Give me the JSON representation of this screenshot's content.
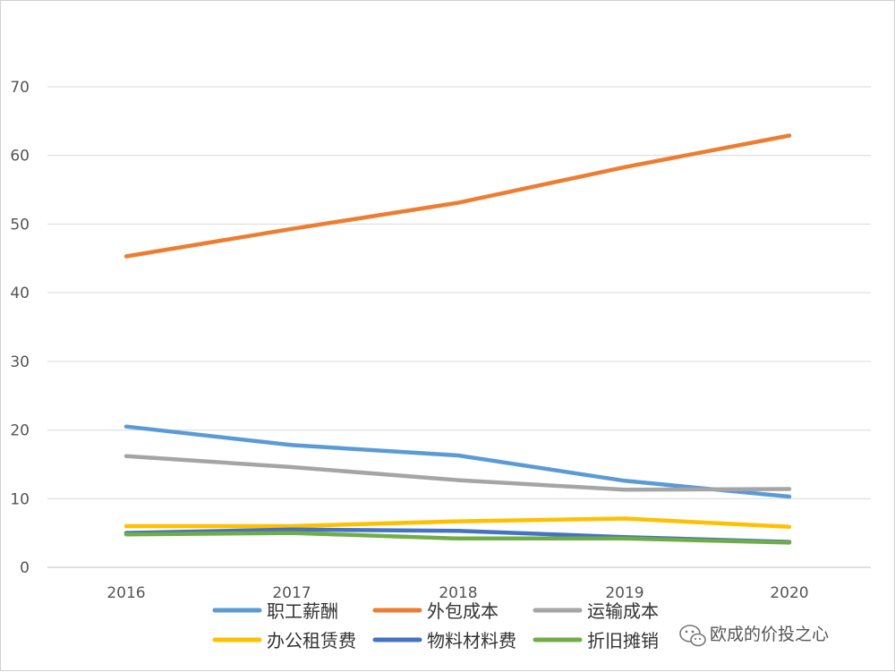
{
  "chart_data": {
    "type": "line",
    "title": "",
    "xlabel": "",
    "ylabel": "",
    "categories": [
      "2016",
      "2017",
      "2018",
      "2019",
      "2020"
    ],
    "ylim": [
      0,
      70
    ],
    "yticks": [
      0,
      10,
      20,
      30,
      40,
      50,
      60,
      70
    ],
    "grid": true,
    "legend_position": "bottom",
    "series": [
      {
        "name": "职工薪酬",
        "color": "#5b9bd5",
        "values": [
          20.5,
          17.8,
          16.3,
          12.6,
          10.3
        ]
      },
      {
        "name": "外包成本",
        "color": "#ed7d31",
        "values": [
          45.3,
          49.3,
          53.1,
          58.3,
          62.9
        ]
      },
      {
        "name": "运输成本",
        "color": "#a5a5a5",
        "values": [
          16.2,
          14.6,
          12.7,
          11.3,
          11.4
        ]
      },
      {
        "name": "办公租赁费",
        "color": "#ffc000",
        "values": [
          6.0,
          6.0,
          6.7,
          7.1,
          5.9
        ]
      },
      {
        "name": "物料材料费",
        "color": "#4472c4",
        "values": [
          5.0,
          5.5,
          5.3,
          4.4,
          3.7
        ]
      },
      {
        "name": "折旧摊销",
        "color": "#70ad47",
        "values": [
          4.8,
          5.0,
          4.2,
          4.2,
          3.6
        ]
      }
    ]
  },
  "watermark": {
    "text": "欧成的价投之心",
    "icon": "wechat-icon"
  }
}
